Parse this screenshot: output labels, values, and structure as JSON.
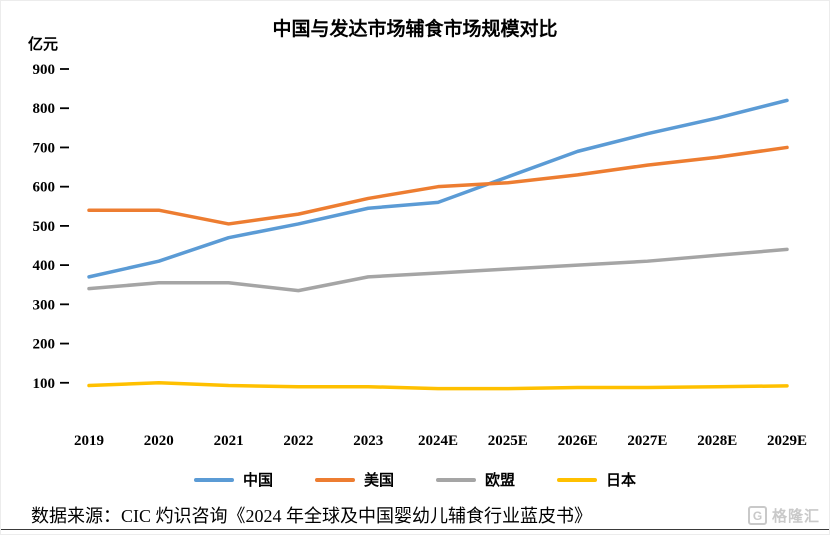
{
  "page": {
    "unit_label": "亿元",
    "source_text": "数据来源：CIC 灼识咨询《2024 年全球及中国婴幼儿辅食行业蓝皮书》",
    "watermark_text": "格隆汇",
    "watermark_icon": "G"
  },
  "chart_data": {
    "type": "line",
    "title": "中国与发达市场辅食市场规模对比",
    "ylabel": "亿元",
    "xlabel": "",
    "categories": [
      "2019",
      "2020",
      "2021",
      "2022",
      "2023",
      "2024E",
      "2025E",
      "2026E",
      "2027E",
      "2028E",
      "2029E"
    ],
    "series": [
      {
        "name": "中国",
        "color": "#5B9BD5",
        "values": [
          370,
          410,
          470,
          505,
          545,
          560,
          625,
          690,
          735,
          775,
          820
        ]
      },
      {
        "name": "美国",
        "color": "#ED7D31",
        "values": [
          540,
          540,
          505,
          530,
          570,
          600,
          610,
          630,
          655,
          675,
          700
        ]
      },
      {
        "name": "欧盟",
        "color": "#A5A5A5",
        "values": [
          340,
          355,
          355,
          335,
          370,
          380,
          390,
          400,
          410,
          425,
          440
        ]
      },
      {
        "name": "日本",
        "color": "#FFC000",
        "values": [
          93,
          100,
          93,
          90,
          90,
          85,
          85,
          88,
          88,
          90,
          92
        ]
      }
    ],
    "ylim": [
      0,
      900
    ],
    "ytick_step": 100,
    "grid": false,
    "legend_position": "bottom"
  }
}
